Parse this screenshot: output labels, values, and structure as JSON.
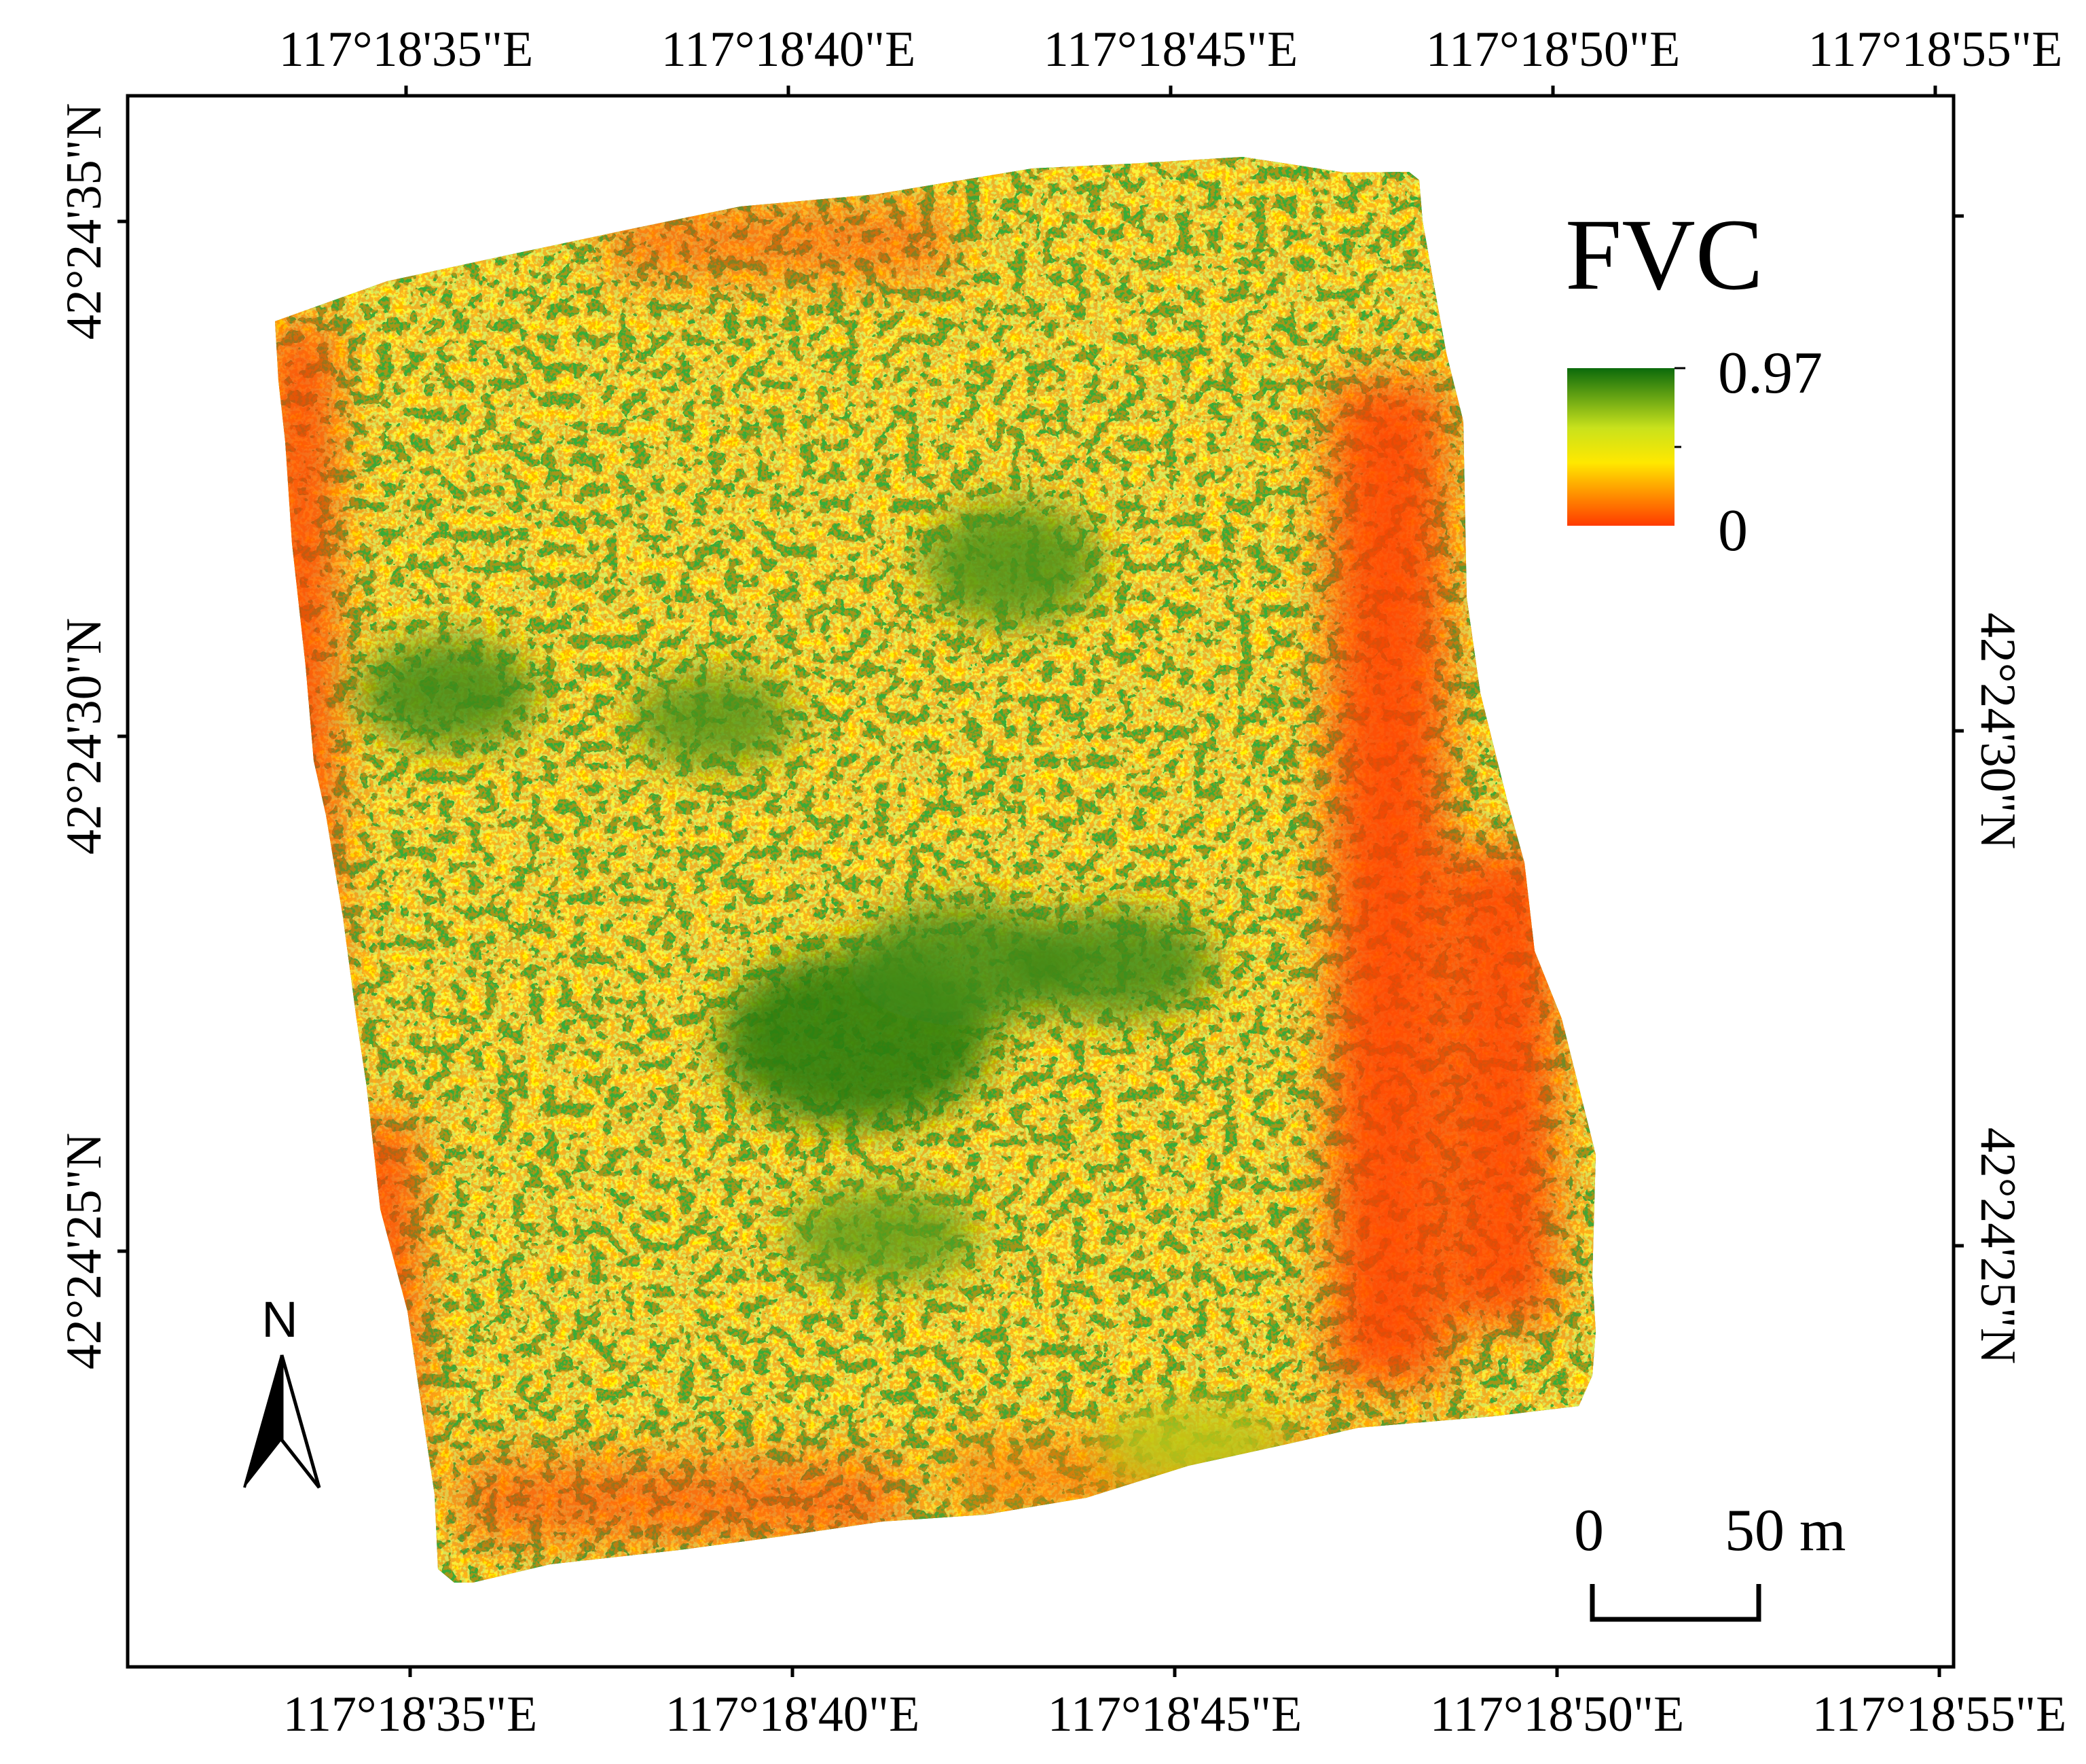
{
  "map": {
    "top_longitude_labels": [
      "117°18'35\"E",
      "117°18'40\"E",
      "117°18'45\"E",
      "117°18'50\"E",
      "117°18'55\"E"
    ],
    "bottom_longitude_labels": [
      "117°18'35\"E",
      "117°18'40\"E",
      "117°18'45\"E",
      "117°18'50\"E",
      "117°18'55\"E"
    ],
    "left_latitude_labels": [
      "42°24'35\"N",
      "42°24'30\"N",
      "42°24'25\"N"
    ],
    "right_latitude_labels": [
      "42°24'30\"N",
      "42°24'25\"N"
    ]
  },
  "legend": {
    "title": "FVC",
    "max_label": "0.97",
    "min_label": "0",
    "ramp_colors": [
      "#0b6a0b",
      "#c9e21c",
      "#ffe800",
      "#ff3a00"
    ]
  },
  "scale_bar": {
    "start_label": "0",
    "end_label": "50 m"
  },
  "north_arrow": {
    "letter": "N",
    "icon": "north-arrow-icon"
  },
  "colors": {
    "dense_vegetation": "#0b6a0b",
    "medium_vegetation": "#b7d31b",
    "sparse_vegetation": "#ffe800",
    "bare": "#ff3a00"
  }
}
